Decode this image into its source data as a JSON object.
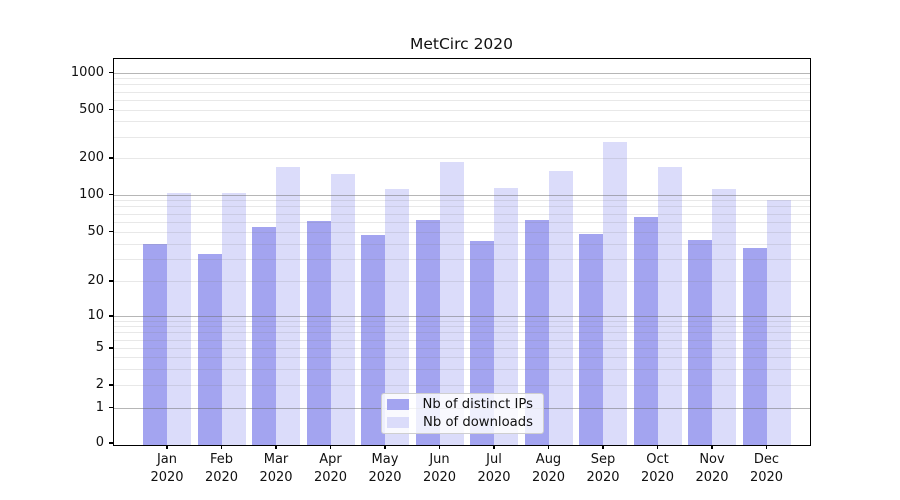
{
  "chart_data": {
    "type": "bar",
    "title": "MetCirc 2020",
    "categories": [
      "Jan 2020",
      "Feb 2020",
      "Mar 2020",
      "Apr 2020",
      "May 2020",
      "Jun 2020",
      "Jul 2020",
      "Aug 2020",
      "Sep 2020",
      "Oct 2020",
      "Nov 2020",
      "Dec 2020"
    ],
    "series": [
      {
        "name": "Nb of distinct IPs",
        "color": "#a3a4f0",
        "values": [
          40,
          33,
          54,
          61,
          47,
          62,
          42,
          62,
          48,
          66,
          43,
          37
        ]
      },
      {
        "name": "Nb of downloads",
        "color": "#dbdcfa",
        "values": [
          102,
          102,
          170,
          147,
          111,
          184,
          113,
          157,
          271,
          168,
          112,
          91
        ]
      }
    ],
    "xlabel": "",
    "ylabel": "",
    "yscale": "symlog",
    "yticks": [
      0,
      1,
      2,
      5,
      10,
      20,
      50,
      100,
      200,
      500,
      1000
    ],
    "ylim": [
      0,
      1400
    ],
    "grid": "horizontal major+minor",
    "legend_position": "lower center"
  }
}
